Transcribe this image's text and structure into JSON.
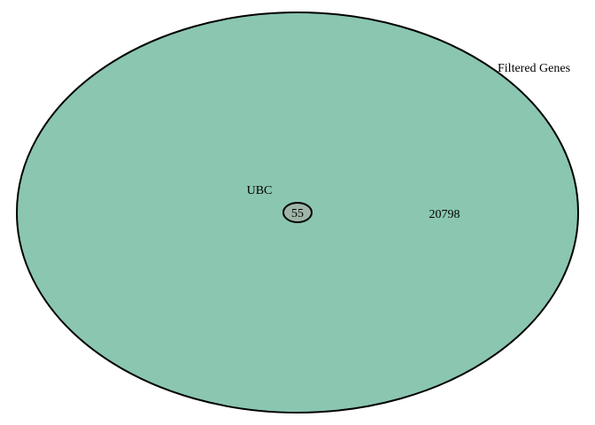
{
  "diagram": {
    "type": "venn",
    "sets": [
      {
        "name": "Filtered Genes",
        "color": "#8ac6b0"
      },
      {
        "name": "UBC",
        "color": "#9fb5a8"
      }
    ],
    "regions": {
      "filtered_genes_only": "20798",
      "intersection": "55"
    }
  }
}
